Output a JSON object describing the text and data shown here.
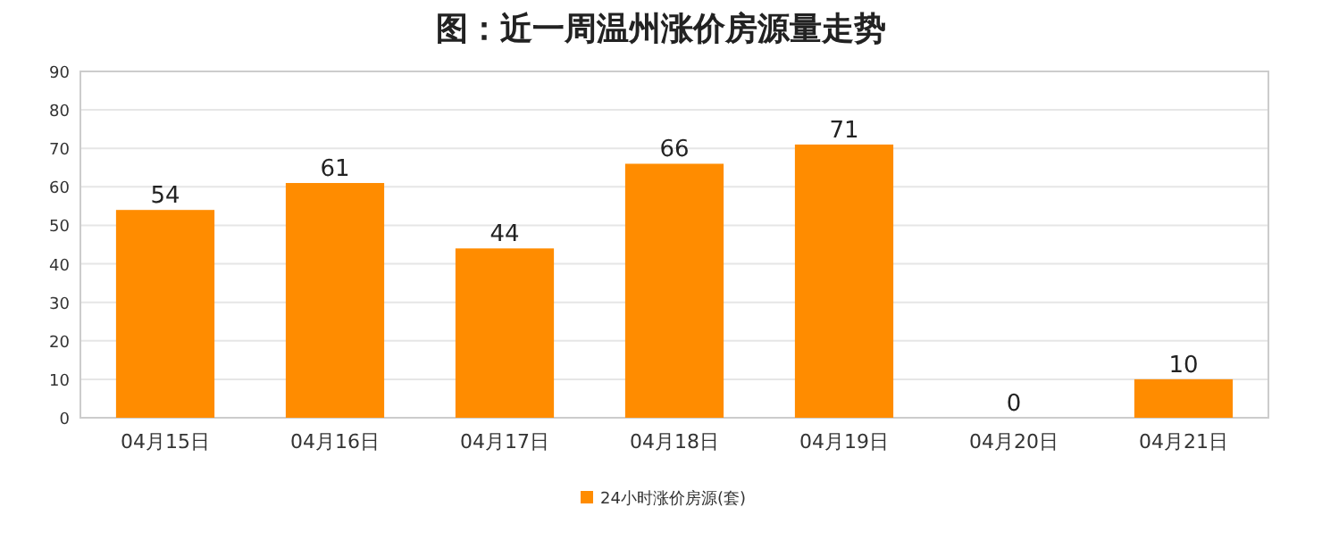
{
  "chart_data": {
    "type": "bar",
    "title": "图：近一周温州涨价房源量走势",
    "categories": [
      "04月15日",
      "04月16日",
      "04月17日",
      "04月18日",
      "04月19日",
      "04月20日",
      "04月21日"
    ],
    "series": [
      {
        "name": "24小时涨价房源(套)",
        "color": "#ff8c00",
        "values": [
          54,
          61,
          44,
          66,
          71,
          0,
          10
        ]
      }
    ],
    "ylim": [
      0,
      90
    ],
    "yticks": [
      0,
      10,
      20,
      30,
      40,
      50,
      60,
      70,
      80,
      90
    ],
    "grid": "y",
    "legend": "bottom",
    "data_labels": true
  }
}
